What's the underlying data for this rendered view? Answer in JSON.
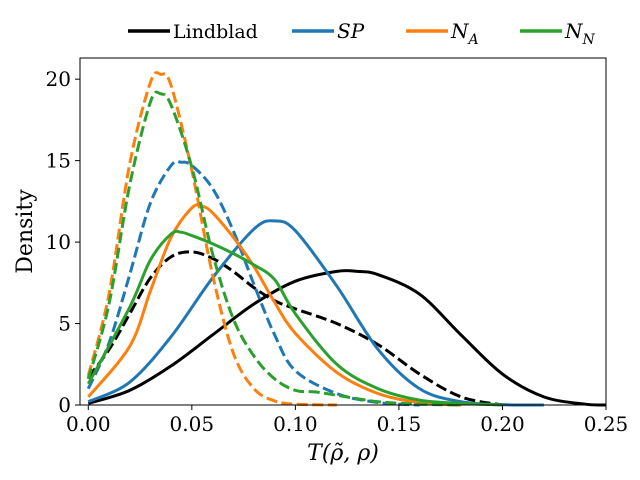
{
  "chart_data": {
    "type": "line",
    "title": "",
    "xlabel": "T(ρ̃, ρ)",
    "ylabel": "Density",
    "xlim": [
      -0.004,
      0.25
    ],
    "ylim": [
      0,
      21.3
    ],
    "xticks": [
      0.0,
      0.05,
      0.1,
      0.15,
      0.2,
      0.25
    ],
    "xtick_labels": [
      "0.00",
      "0.05",
      "0.10",
      "0.15",
      "0.20",
      "0.25"
    ],
    "yticks": [
      0,
      5,
      10,
      15,
      20
    ],
    "ytick_labels": [
      "0",
      "5",
      "10",
      "15",
      "20"
    ],
    "grid": false,
    "legend_position": "top, outside plot",
    "legend": [
      {
        "label": "Lindblad",
        "color": "#000000"
      },
      {
        "label": "SP",
        "color": "#1f77b4"
      },
      {
        "label": "N_A",
        "color": "#ff7f0e"
      },
      {
        "label": "N_N",
        "color": "#2ca02c"
      }
    ],
    "series": [
      {
        "name": "Lindblad (solid)",
        "color": "#000000",
        "style": "solid",
        "x": [
          0.0,
          0.02,
          0.04,
          0.06,
          0.08,
          0.1,
          0.12,
          0.13,
          0.14,
          0.16,
          0.18,
          0.2,
          0.22,
          0.24,
          0.25
        ],
        "y": [
          0.1,
          0.9,
          2.4,
          4.3,
          6.2,
          7.6,
          8.2,
          8.2,
          8.0,
          6.8,
          4.3,
          1.9,
          0.5,
          0.05,
          0.0
        ]
      },
      {
        "name": "Lindblad (dashed)",
        "color": "#000000",
        "style": "dashed",
        "x": [
          0.0,
          0.01,
          0.02,
          0.03,
          0.04,
          0.05,
          0.06,
          0.07,
          0.08,
          0.09,
          0.1,
          0.12,
          0.14,
          0.16,
          0.18,
          0.2
        ],
        "y": [
          1.7,
          3.4,
          5.6,
          7.8,
          9.1,
          9.4,
          9.0,
          8.2,
          7.2,
          6.4,
          5.9,
          5.0,
          3.7,
          1.9,
          0.5,
          0.0
        ]
      },
      {
        "name": "SP (solid)",
        "color": "#1f77b4",
        "style": "solid",
        "x": [
          0.0,
          0.02,
          0.04,
          0.06,
          0.08,
          0.09,
          0.1,
          0.12,
          0.14,
          0.16,
          0.18,
          0.2,
          0.22
        ],
        "y": [
          0.2,
          1.4,
          4.2,
          7.8,
          10.8,
          11.3,
          10.7,
          7.3,
          3.4,
          1.0,
          0.2,
          0.02,
          0.0
        ]
      },
      {
        "name": "SP (dashed)",
        "color": "#1f77b4",
        "style": "dashed",
        "x": [
          0.0,
          0.01,
          0.02,
          0.03,
          0.04,
          0.045,
          0.05,
          0.06,
          0.07,
          0.08,
          0.09,
          0.1,
          0.12,
          0.14,
          0.16
        ],
        "y": [
          1.0,
          3.8,
          8.0,
          12.4,
          14.7,
          14.9,
          14.7,
          13.3,
          10.7,
          7.4,
          4.3,
          2.1,
          0.7,
          0.15,
          0.0
        ]
      },
      {
        "name": "N_A (solid)",
        "color": "#ff7f0e",
        "style": "solid",
        "x": [
          0.0,
          0.02,
          0.03,
          0.04,
          0.05,
          0.055,
          0.06,
          0.07,
          0.08,
          0.09,
          0.1,
          0.12,
          0.14,
          0.16,
          0.18
        ],
        "y": [
          0.5,
          3.6,
          7.0,
          10.3,
          12.1,
          12.2,
          11.8,
          10.3,
          8.5,
          6.3,
          4.4,
          2.0,
          0.7,
          0.15,
          0.0
        ]
      },
      {
        "name": "N_A (dashed)",
        "color": "#ff7f0e",
        "style": "dashed",
        "x": [
          0.0,
          0.01,
          0.02,
          0.03,
          0.035,
          0.04,
          0.05,
          0.06,
          0.07,
          0.08,
          0.09,
          0.1,
          0.12
        ],
        "y": [
          1.8,
          6.8,
          14.8,
          19.8,
          20.3,
          19.6,
          14.4,
          8.0,
          3.2,
          1.0,
          0.25,
          0.05,
          0.0
        ]
      },
      {
        "name": "N_N (solid)",
        "color": "#2ca02c",
        "style": "solid",
        "x": [
          0.0,
          0.02,
          0.03,
          0.04,
          0.045,
          0.05,
          0.06,
          0.07,
          0.08,
          0.09,
          0.1,
          0.12,
          0.14,
          0.16,
          0.18,
          0.2
        ],
        "y": [
          1.3,
          6.0,
          8.9,
          10.5,
          10.6,
          10.4,
          9.9,
          9.3,
          8.6,
          7.7,
          5.6,
          2.5,
          1.0,
          0.3,
          0.1,
          0.0
        ]
      },
      {
        "name": "N_N (dashed)",
        "color": "#2ca02c",
        "style": "dashed",
        "x": [
          0.0,
          0.01,
          0.02,
          0.03,
          0.035,
          0.04,
          0.05,
          0.06,
          0.07,
          0.08,
          0.09,
          0.1,
          0.11,
          0.12,
          0.14,
          0.16,
          0.18
        ],
        "y": [
          1.6,
          6.2,
          13.5,
          18.6,
          19.1,
          18.4,
          14.6,
          9.3,
          5.3,
          3.0,
          1.6,
          0.9,
          0.8,
          0.6,
          0.2,
          0.05,
          0.0
        ]
      }
    ]
  }
}
